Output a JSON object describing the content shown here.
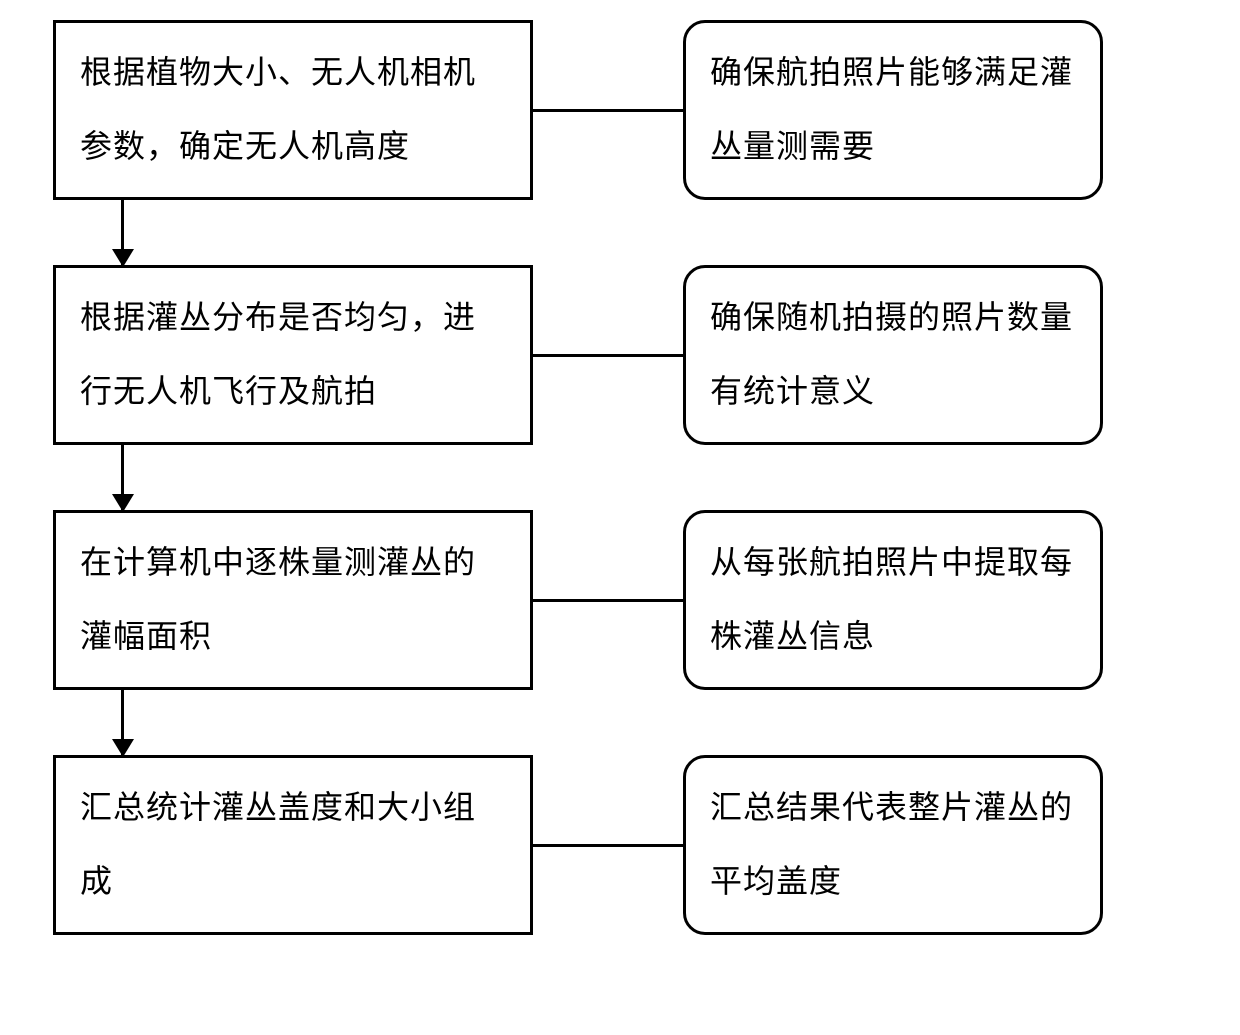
{
  "diagram": {
    "type": "flowchart",
    "background_color": "#ffffff",
    "border_color": "#000000",
    "border_width": 3,
    "text_color": "#000000",
    "font_size": 32,
    "font_family": "SimSun",
    "main_box_width": 480,
    "main_box_height": 180,
    "side_box_width": 420,
    "side_box_height": 180,
    "side_box_border_radius": 22,
    "connector_width": 150,
    "arrow_gap": 65,
    "steps": [
      {
        "main": "根据植物大小、无人机相机参数，确定无人机高度",
        "side": "确保航拍照片能够满足灌丛量测需要"
      },
      {
        "main": "根据灌丛分布是否均匀，进行无人机飞行及航拍",
        "side": "确保随机拍摄的照片数量有统计意义"
      },
      {
        "main": "在计算机中逐株量测灌丛的灌幅面积",
        "side": "从每张航拍照片中提取每株灌丛信息"
      },
      {
        "main": "汇总统计灌丛盖度和大小组成",
        "side": "汇总结果代表整片灌丛的平均盖度"
      }
    ]
  }
}
